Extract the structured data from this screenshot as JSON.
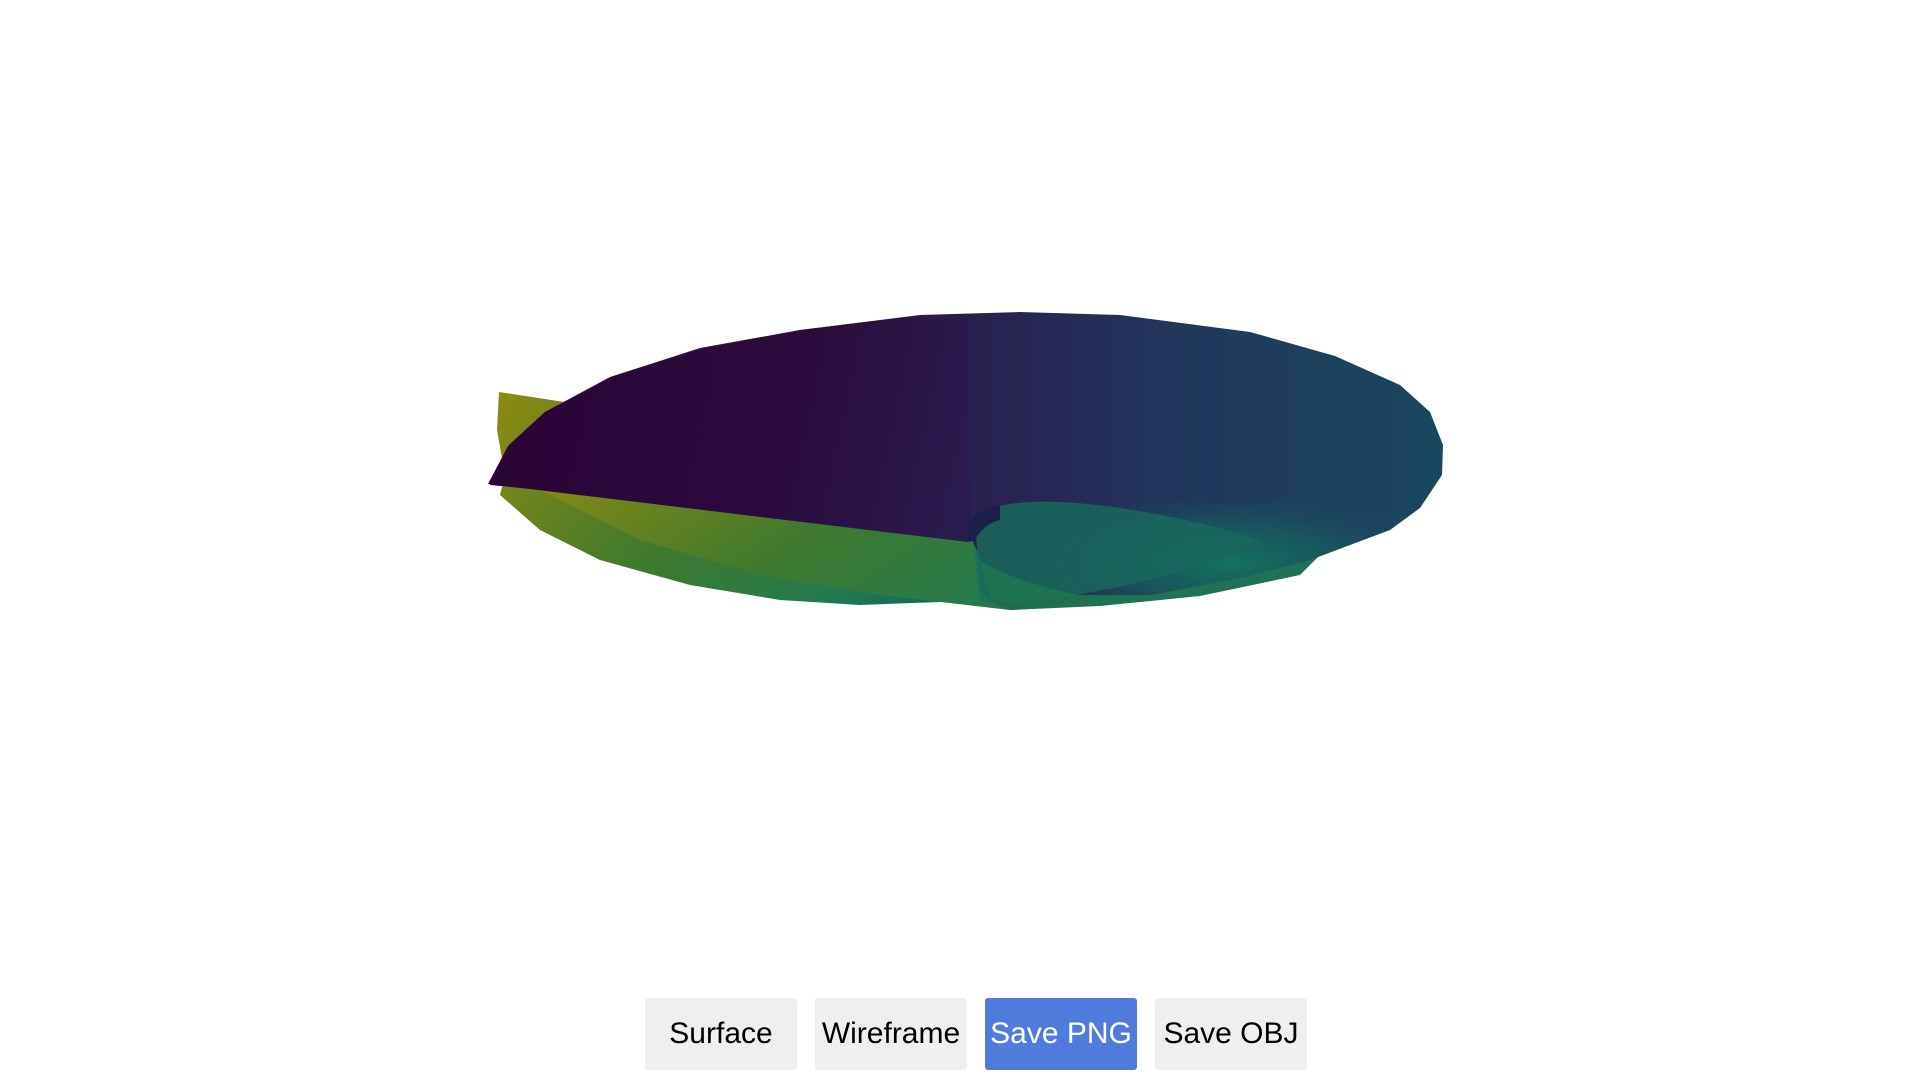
{
  "toolbar": {
    "surface_label": "Surface",
    "wireframe_label": "Wireframe",
    "save_png_label": "Save PNG",
    "save_obj_label": "Save OBJ",
    "active": "save_png"
  },
  "scene": {
    "shape": "spiral-disk-surface",
    "colormap": "viridis",
    "colors": {
      "dark": "#2d0a3c",
      "mid_blue": "#20375a",
      "teal": "#12635c",
      "green": "#237a50",
      "yellow": "#8e8a12",
      "active_button": "#4f7bdc",
      "button_bg": "#efefef"
    }
  }
}
